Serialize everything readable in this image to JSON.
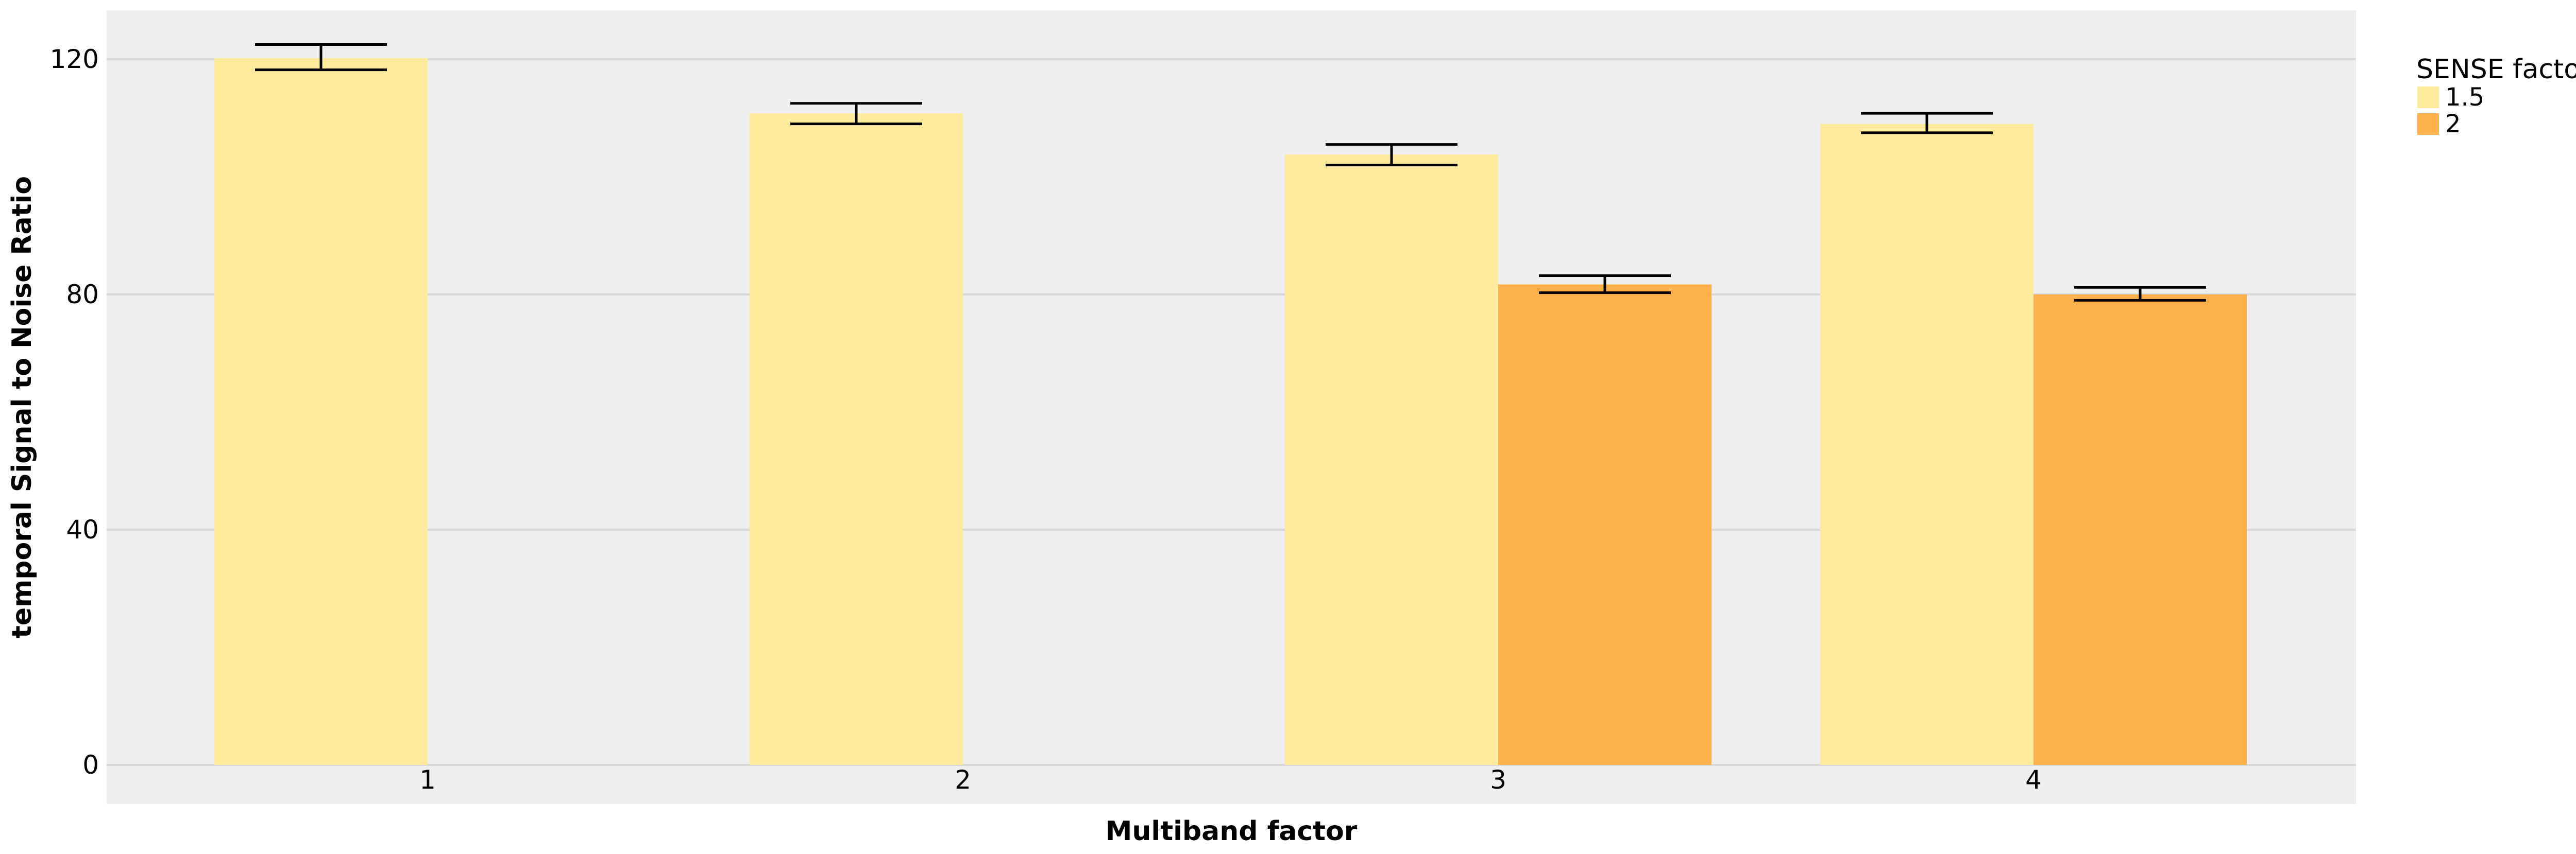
{
  "chart_data": {
    "type": "bar",
    "xlabel": "Multiband factor",
    "ylabel": "temporal Signal to Noise Ratio",
    "categories": [
      "1",
      "2",
      "3",
      "4"
    ],
    "ylim": [
      0,
      128
    ],
    "yticks": [
      0,
      40,
      80,
      120
    ],
    "grid": true,
    "legend": {
      "title": "SENSE factor",
      "placement": "right"
    },
    "series": [
      {
        "name": "1.5",
        "color": "#feeb9e",
        "values": [
          120.2,
          110.8,
          103.8,
          109.0
        ],
        "error_low": [
          118.2,
          109.0,
          102.0,
          107.5
        ],
        "error_high": [
          122.5,
          112.5,
          105.5,
          110.8
        ]
      },
      {
        "name": "2",
        "color": "#fdb14d",
        "values": [
          null,
          null,
          81.7,
          80.0
        ],
        "error_low": [
          null,
          null,
          80.3,
          79.0
        ],
        "error_high": [
          null,
          null,
          83.2,
          81.2
        ]
      }
    ]
  },
  "style": {
    "panel_background": "#efefef",
    "grid_color": "#d9d9d9",
    "error_bar_color": "#000000"
  }
}
